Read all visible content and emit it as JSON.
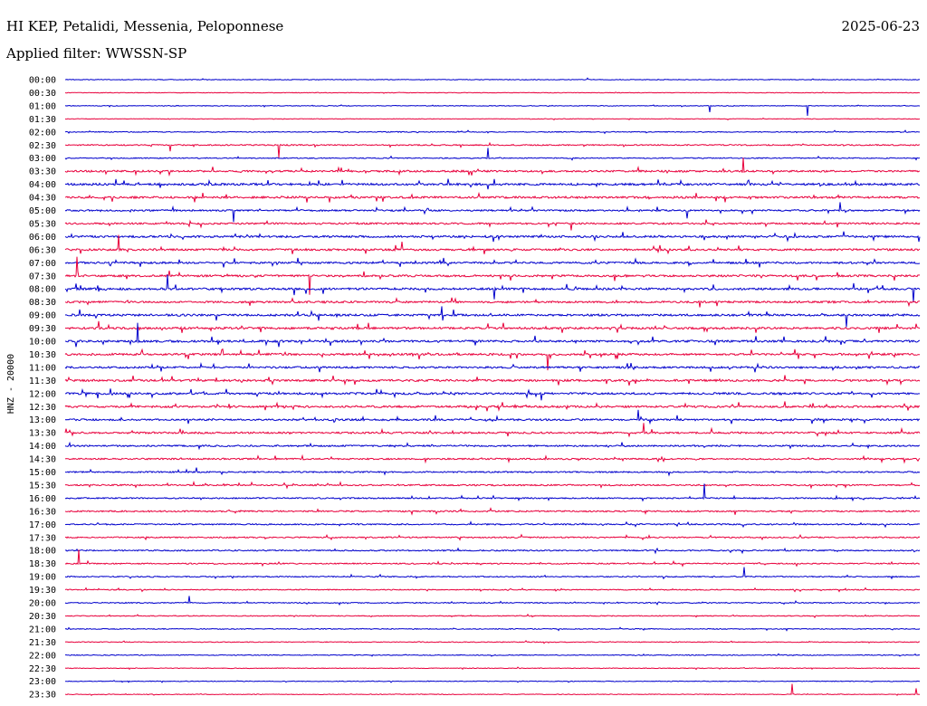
{
  "header": {
    "title": "HI KEP, Petalidi, Messenia, Peloponnese",
    "date": "2025-06-23",
    "filter": "Applied filter: WWSSN-SP",
    "channel_label": "HNZ - 20000"
  },
  "colors": {
    "even": "#0000cc",
    "odd": "#e8003c"
  },
  "chart_data": {
    "type": "line",
    "title": "HI KEP, Petalidi, Messenia, Peloponnese",
    "subtitle": "Applied filter: WWSSN-SP",
    "ylabel": "HNZ - 20000",
    "xlabel": "",
    "rows": [
      "00:00",
      "00:30",
      "01:00",
      "01:30",
      "02:00",
      "02:30",
      "03:00",
      "03:30",
      "04:00",
      "04:30",
      "05:00",
      "05:30",
      "06:00",
      "06:30",
      "07:00",
      "07:30",
      "08:00",
      "08:30",
      "09:00",
      "09:30",
      "10:00",
      "10:30",
      "11:00",
      "11:30",
      "12:00",
      "12:30",
      "13:00",
      "13:30",
      "14:00",
      "14:30",
      "15:00",
      "15:30",
      "16:00",
      "16:30",
      "17:00",
      "17:30",
      "18:00",
      "18:30",
      "19:00",
      "19:30",
      "20:00",
      "20:30",
      "21:00",
      "21:30",
      "22:00",
      "22:30",
      "23:00",
      "23:30"
    ],
    "activity": [
      0.15,
      0.1,
      0.15,
      0.1,
      0.25,
      0.4,
      0.3,
      0.7,
      0.85,
      0.8,
      0.6,
      0.65,
      0.8,
      0.75,
      0.75,
      0.8,
      0.85,
      0.75,
      0.85,
      0.85,
      0.85,
      0.8,
      0.75,
      0.8,
      0.8,
      0.8,
      0.7,
      0.7,
      0.6,
      0.55,
      0.5,
      0.5,
      0.45,
      0.5,
      0.45,
      0.45,
      0.45,
      0.4,
      0.35,
      0.3,
      0.3,
      0.25,
      0.25,
      0.2,
      0.2,
      0.15,
      0.15,
      0.15
    ],
    "grid": false,
    "legend": "none"
  }
}
